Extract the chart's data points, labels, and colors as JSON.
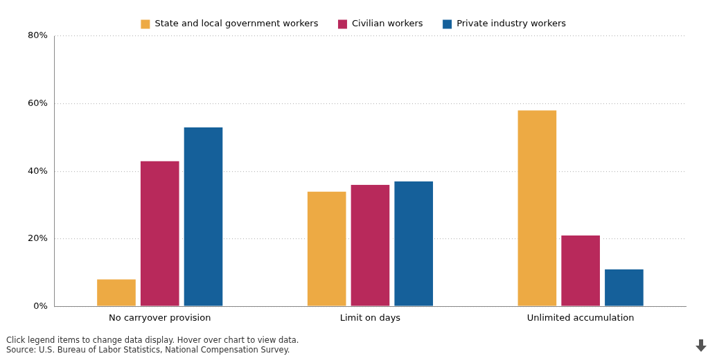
{
  "chart_data": {
    "type": "bar",
    "categories": [
      "No carryover provision",
      "Limit on days",
      "Unlimited accumulation"
    ],
    "series": [
      {
        "name": "State and local government workers",
        "color": "#edaa44",
        "values": [
          8,
          34,
          58
        ]
      },
      {
        "name": "Civilian workers",
        "color": "#b8295b",
        "values": [
          43,
          36,
          21
        ]
      },
      {
        "name": "Private industry workers",
        "color": "#15609a",
        "values": [
          53,
          37,
          11
        ]
      }
    ],
    "ylim": [
      0,
      80
    ],
    "yticks": [
      {
        "value": 0,
        "label": "0%"
      },
      {
        "value": 20,
        "label": "20%"
      },
      {
        "value": 40,
        "label": "40%"
      },
      {
        "value": 60,
        "label": "60%"
      },
      {
        "value": 80,
        "label": "80%"
      }
    ],
    "grid": "y",
    "legend": "top",
    "annotations": [
      "Click legend items to change data display. Hover over chart to view data.",
      "Source: U.S. Bureau of Labor Statistics, National Compensation Survey."
    ]
  }
}
